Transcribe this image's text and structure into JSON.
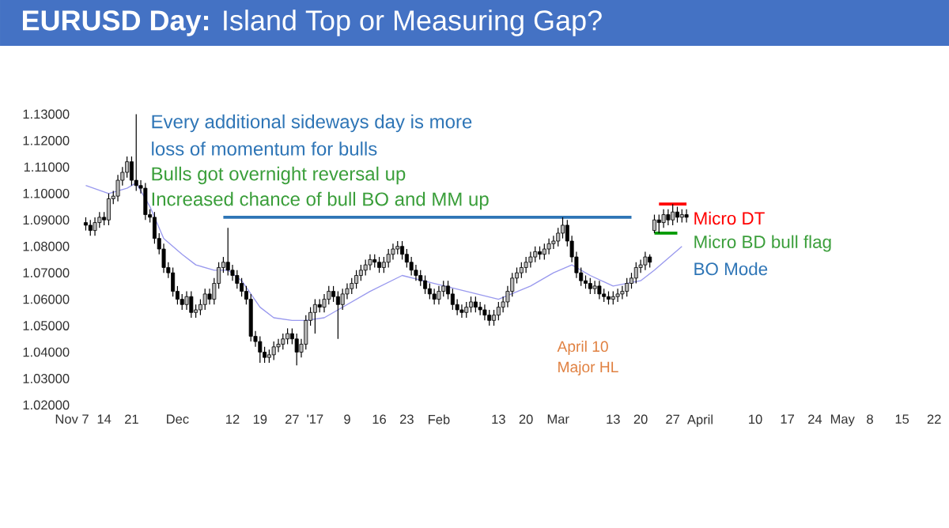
{
  "chart_data": {
    "type": "candlestick",
    "title": "**EURUSD Day:** Island Top or Measuring Gap?",
    "categories": [
      null,
      "Nov 7",
      null,
      null,
      null,
      null,
      null,
      null,
      "14",
      null,
      null,
      null,
      null,
      null,
      "21",
      null,
      null,
      null,
      null,
      null,
      null,
      null,
      null,
      null,
      "Dec",
      null,
      null,
      null,
      null,
      null,
      null,
      null,
      null,
      null,
      null,
      null,
      "12",
      null,
      null,
      null,
      null,
      null,
      "19",
      null,
      null,
      null,
      null,
      null,
      null,
      "27",
      null,
      null,
      null,
      null,
      "'17",
      null,
      null,
      null,
      null,
      null,
      null,
      "9",
      null,
      null,
      null,
      null,
      null,
      null,
      "16",
      null,
      null,
      null,
      null,
      null,
      "23",
      null,
      null,
      null,
      null,
      null,
      null,
      "Feb",
      null,
      null,
      null,
      null,
      null,
      null,
      null,
      null,
      null,
      null,
      null,
      null,
      "13",
      null,
      null,
      null,
      null,
      null,
      "20",
      null,
      null,
      null,
      null,
      null,
      null,
      "Mar",
      null,
      null,
      null,
      null,
      null,
      null,
      null,
      null,
      null,
      null,
      null,
      "13",
      null,
      null,
      null,
      null,
      null,
      "20",
      null,
      null,
      null,
      null,
      null,
      null,
      "27",
      null,
      null,
      null,
      null,
      null,
      "April",
      null,
      null,
      null,
      null,
      null,
      null,
      null,
      null,
      null,
      null,
      null,
      "10",
      null,
      null,
      null,
      null,
      null,
      null,
      "17",
      null,
      null,
      null,
      null,
      null,
      "24",
      null,
      null,
      null,
      null,
      null,
      "May",
      null,
      null,
      null,
      null,
      null,
      "8",
      null,
      null,
      null,
      null,
      null,
      null,
      "15",
      null,
      null,
      null,
      null,
      null,
      null,
      "22",
      null
    ],
    "ohlc": [
      null,
      null,
      null,
      null,
      [
        1.089,
        1.091,
        1.086,
        1.088
      ],
      [
        1.088,
        1.09,
        1.084,
        1.086
      ],
      [
        1.086,
        1.091,
        1.084,
        1.089
      ],
      [
        1.089,
        1.093,
        1.087,
        1.091
      ],
      [
        1.091,
        1.093,
        1.088,
        1.09
      ],
      [
        1.09,
        1.1,
        1.088,
        1.098
      ],
      [
        1.098,
        1.101,
        1.096,
        1.099
      ],
      [
        1.099,
        1.107,
        1.097,
        1.105
      ],
      [
        1.105,
        1.11,
        1.103,
        1.108
      ],
      [
        1.108,
        1.114,
        1.106,
        1.112
      ],
      [
        1.112,
        1.114,
        1.103,
        1.105
      ],
      [
        1.105,
        1.13,
        1.101,
        1.103
      ],
      [
        1.103,
        1.105,
        1.1,
        1.102
      ],
      [
        1.102,
        1.104,
        1.09,
        1.092
      ],
      [
        1.092,
        1.094,
        1.089,
        1.091
      ],
      [
        1.091,
        1.093,
        1.081,
        1.083
      ],
      [
        1.083,
        1.085,
        1.077,
        1.079
      ],
      [
        1.079,
        1.081,
        1.07,
        1.072
      ],
      [
        1.072,
        1.074,
        1.068,
        1.07
      ],
      [
        1.07,
        1.072,
        1.061,
        1.063
      ],
      [
        1.063,
        1.065,
        1.058,
        1.06
      ],
      [
        1.06,
        1.062,
        1.056,
        1.058
      ],
      [
        1.058,
        1.063,
        1.056,
        1.061
      ],
      [
        1.061,
        1.063,
        1.053,
        1.055
      ],
      [
        1.055,
        1.058,
        1.053,
        1.056
      ],
      [
        1.056,
        1.06,
        1.054,
        1.058
      ],
      [
        1.058,
        1.064,
        1.056,
        1.062
      ],
      [
        1.062,
        1.064,
        1.058,
        1.06
      ],
      [
        1.06,
        1.068,
        1.058,
        1.066
      ],
      [
        1.066,
        1.074,
        1.064,
        1.072
      ],
      [
        1.072,
        1.076,
        1.07,
        1.074
      ],
      [
        1.074,
        1.087,
        1.069,
        1.071
      ],
      [
        1.071,
        1.073,
        1.067,
        1.069
      ],
      [
        1.069,
        1.071,
        1.064,
        1.066
      ],
      [
        1.066,
        1.068,
        1.061,
        1.063
      ],
      [
        1.063,
        1.065,
        1.058,
        1.06
      ],
      [
        1.06,
        1.062,
        1.044,
        1.046
      ],
      [
        1.046,
        1.048,
        1.042,
        1.044
      ],
      [
        1.044,
        1.046,
        1.036,
        1.04
      ],
      [
        1.04,
        1.042,
        1.036,
        1.038
      ],
      [
        1.038,
        1.041,
        1.036,
        1.039
      ],
      [
        1.039,
        1.044,
        1.037,
        1.042
      ],
      [
        1.042,
        1.045,
        1.04,
        1.043
      ],
      [
        1.043,
        1.047,
        1.041,
        1.045
      ],
      [
        1.045,
        1.049,
        1.043,
        1.047
      ],
      [
        1.047,
        1.049,
        1.043,
        1.045
      ],
      [
        1.045,
        1.047,
        1.035,
        1.04
      ],
      [
        1.04,
        1.045,
        1.038,
        1.043
      ],
      [
        1.043,
        1.054,
        1.041,
        1.052
      ],
      [
        1.052,
        1.057,
        1.05,
        1.055
      ],
      [
        1.055,
        1.06,
        1.047,
        1.058
      ],
      [
        1.058,
        1.06,
        1.055,
        1.057
      ],
      [
        1.057,
        1.062,
        1.055,
        1.06
      ],
      [
        1.06,
        1.065,
        1.058,
        1.063
      ],
      [
        1.063,
        1.065,
        1.059,
        1.061
      ],
      [
        1.061,
        1.063,
        1.045,
        1.058
      ],
      [
        1.058,
        1.064,
        1.056,
        1.062
      ],
      [
        1.062,
        1.066,
        1.06,
        1.064
      ],
      [
        1.064,
        1.068,
        1.062,
        1.066
      ],
      [
        1.066,
        1.071,
        1.064,
        1.069
      ],
      [
        1.069,
        1.073,
        1.067,
        1.071
      ],
      [
        1.071,
        1.075,
        1.069,
        1.073
      ],
      [
        1.073,
        1.077,
        1.071,
        1.075
      ],
      [
        1.075,
        1.077,
        1.072,
        1.074
      ],
      [
        1.074,
        1.076,
        1.07,
        1.072
      ],
      [
        1.072,
        1.076,
        1.07,
        1.074
      ],
      [
        1.074,
        1.079,
        1.072,
        1.077
      ],
      [
        1.077,
        1.081,
        1.075,
        1.079
      ],
      [
        1.079,
        1.082,
        1.077,
        1.08
      ],
      [
        1.08,
        1.082,
        1.075,
        1.077
      ],
      [
        1.077,
        1.079,
        1.072,
        1.074
      ],
      [
        1.074,
        1.076,
        1.069,
        1.071
      ],
      [
        1.071,
        1.073,
        1.067,
        1.069
      ],
      [
        1.069,
        1.071,
        1.065,
        1.067
      ],
      [
        1.067,
        1.069,
        1.062,
        1.064
      ],
      [
        1.064,
        1.066,
        1.06,
        1.062
      ],
      [
        1.062,
        1.064,
        1.058,
        1.06
      ],
      [
        1.06,
        1.065,
        1.058,
        1.063
      ],
      [
        1.063,
        1.067,
        1.061,
        1.065
      ],
      [
        1.065,
        1.067,
        1.06,
        1.062
      ],
      [
        1.062,
        1.064,
        1.056,
        1.058
      ],
      [
        1.058,
        1.06,
        1.054,
        1.056
      ],
      [
        1.056,
        1.058,
        1.053,
        1.055
      ],
      [
        1.055,
        1.059,
        1.053,
        1.057
      ],
      [
        1.057,
        1.061,
        1.055,
        1.059
      ],
      [
        1.059,
        1.061,
        1.055,
        1.057
      ],
      [
        1.057,
        1.059,
        1.054,
        1.056
      ],
      [
        1.056,
        1.058,
        1.052,
        1.054
      ],
      [
        1.054,
        1.056,
        1.05,
        1.052
      ],
      [
        1.052,
        1.056,
        1.05,
        1.054
      ],
      [
        1.054,
        1.059,
        1.052,
        1.057
      ],
      [
        1.057,
        1.061,
        1.055,
        1.059
      ],
      [
        1.059,
        1.065,
        1.057,
        1.063
      ],
      [
        1.063,
        1.07,
        1.061,
        1.068
      ],
      [
        1.068,
        1.072,
        1.066,
        1.07
      ],
      [
        1.07,
        1.074,
        1.068,
        1.072
      ],
      [
        1.072,
        1.076,
        1.07,
        1.074
      ],
      [
        1.074,
        1.078,
        1.072,
        1.076
      ],
      [
        1.076,
        1.08,
        1.074,
        1.078
      ],
      [
        1.078,
        1.08,
        1.075,
        1.077
      ],
      [
        1.077,
        1.081,
        1.075,
        1.079
      ],
      [
        1.079,
        1.083,
        1.077,
        1.081
      ],
      [
        1.081,
        1.084,
        1.079,
        1.082
      ],
      [
        1.082,
        1.087,
        1.08,
        1.085
      ],
      [
        1.085,
        1.091,
        1.083,
        1.088
      ],
      [
        1.088,
        1.09,
        1.08,
        1.082
      ],
      [
        1.082,
        1.084,
        1.074,
        1.076
      ],
      [
        1.076,
        1.078,
        1.068,
        1.07
      ],
      [
        1.07,
        1.072,
        1.065,
        1.067
      ],
      [
        1.067,
        1.069,
        1.064,
        1.066
      ],
      [
        1.066,
        1.068,
        1.062,
        1.064
      ],
      [
        1.064,
        1.067,
        1.062,
        1.065
      ],
      [
        1.065,
        1.067,
        1.06,
        1.062
      ],
      [
        1.062,
        1.064,
        1.059,
        1.061
      ],
      [
        1.061,
        1.063,
        1.058,
        1.06
      ],
      [
        1.06,
        1.063,
        1.058,
        1.061
      ],
      [
        1.061,
        1.064,
        1.059,
        1.062
      ],
      [
        1.062,
        1.065,
        1.06,
        1.063
      ],
      [
        1.063,
        1.068,
        1.061,
        1.066
      ],
      [
        1.066,
        1.07,
        1.064,
        1.068
      ],
      [
        1.068,
        1.074,
        1.066,
        1.072
      ],
      [
        1.072,
        1.075,
        1.07,
        1.073
      ],
      [
        1.073,
        1.078,
        1.071,
        1.076
      ],
      [
        1.076,
        1.077,
        1.072,
        1.074
      ],
      [
        1.086,
        1.092,
        1.085,
        1.09
      ],
      [
        1.09,
        1.092,
        1.085,
        1.089
      ],
      [
        1.089,
        1.094,
        1.087,
        1.092
      ],
      [
        1.092,
        1.094,
        1.088,
        1.09
      ],
      [
        1.09,
        1.096,
        1.088,
        1.093
      ],
      [
        1.093,
        1.095,
        1.089,
        1.091
      ],
      [
        1.091,
        1.094,
        1.089,
        1.092
      ],
      [
        1.092,
        1.094,
        1.089,
        1.091
      ],
      null,
      null,
      null,
      null,
      null,
      null,
      null,
      null,
      null,
      null,
      null,
      null,
      null,
      null,
      null,
      null,
      null,
      null,
      null,
      null,
      null,
      null,
      null,
      null,
      null,
      null,
      null,
      null,
      null,
      null,
      null,
      null,
      null,
      null,
      null,
      null,
      null,
      null,
      null,
      null,
      null,
      null,
      null,
      null,
      null,
      null,
      null,
      null,
      null,
      null,
      null,
      null,
      null,
      null,
      null
    ],
    "series": [
      {
        "type": "line",
        "color": "#9999ee",
        "values": [
          null,
          null,
          null,
          null,
          1.103,
          null,
          null,
          null,
          null,
          1.1,
          null,
          null,
          null,
          1.102,
          null,
          1.104,
          null,
          null,
          1.095,
          null,
          null,
          1.083,
          null,
          null,
          null,
          1.077,
          null,
          null,
          1.073,
          null,
          null,
          null,
          1.071,
          null,
          null,
          1.071,
          null,
          null,
          1.067,
          null,
          null,
          null,
          1.057,
          null,
          null,
          1.053,
          null,
          null,
          null,
          1.052,
          null,
          null,
          1.052,
          null,
          null,
          null,
          1.053,
          null,
          null,
          1.056,
          null,
          null,
          null,
          null,
          null,
          null,
          1.063,
          null,
          null,
          null,
          null,
          null,
          null,
          1.069,
          null,
          null,
          null,
          null,
          null,
          null,
          1.066,
          null,
          null,
          null,
          null,
          null,
          null,
          1.063,
          null,
          null,
          null,
          null,
          null,
          null,
          1.06,
          null,
          null,
          null,
          null,
          null,
          null,
          1.065,
          null,
          null,
          null,
          null,
          1.07,
          null,
          null,
          null,
          1.073,
          null,
          null,
          null,
          1.069,
          null,
          null,
          null,
          null,
          1.065,
          null,
          null,
          null,
          null,
          null,
          1.067,
          null,
          null,
          1.071,
          null,
          null,
          null,
          null,
          null,
          1.08,
          null,
          null,
          null,
          null,
          null,
          null,
          null,
          null,
          null,
          null,
          null,
          null,
          null,
          null,
          null,
          null,
          null,
          null,
          null,
          null,
          null,
          null,
          null,
          null,
          null,
          null,
          null,
          null,
          null,
          null,
          null,
          null,
          null,
          null,
          null,
          null,
          null,
          null,
          null,
          null,
          null,
          null,
          null,
          null,
          null,
          null,
          null,
          null,
          null,
          null,
          null,
          null,
          null,
          null,
          null,
          null
        ]
      },
      {
        "type": "line",
        "color": "#2e75b6",
        "values": [
          null,
          null,
          null,
          null,
          null,
          null,
          null,
          null,
          null,
          null,
          null,
          null,
          null,
          null,
          null,
          null,
          null,
          null,
          null,
          null,
          null,
          null,
          null,
          null,
          null,
          null,
          null,
          null,
          null,
          null,
          null,
          null,
          null,
          null,
          1.091,
          null,
          null,
          null,
          null,
          null,
          null,
          null,
          null,
          null,
          null,
          null,
          null,
          null,
          null,
          null,
          null,
          null,
          null,
          null,
          null,
          null,
          null,
          null,
          null,
          null,
          null,
          null,
          null,
          null,
          null,
          null,
          null,
          null,
          null,
          null,
          null,
          null,
          null,
          null,
          null,
          null,
          null,
          null,
          null,
          null,
          null,
          null,
          null,
          null,
          null,
          null,
          null,
          null,
          null,
          null,
          null,
          null,
          null,
          null,
          null,
          null,
          null,
          null,
          null,
          null,
          null,
          null,
          null,
          null,
          null,
          null,
          null,
          null,
          null,
          null,
          null,
          null,
          null,
          null,
          null,
          null,
          null,
          null,
          null,
          null,
          null,
          null,
          null,
          1.091,
          null,
          null,
          null,
          null,
          null,
          null,
          null,
          null,
          null,
          null,
          null,
          null,
          null,
          null,
          null,
          null,
          null,
          null,
          null,
          null,
          null,
          null,
          null,
          null,
          null,
          null,
          null,
          null,
          null,
          null,
          null,
          null,
          null,
          null,
          null,
          null,
          null,
          null,
          null,
          null,
          null,
          null,
          null,
          null,
          null,
          null,
          null,
          null,
          null,
          null,
          null,
          null,
          null,
          null,
          null,
          null,
          null,
          null,
          null,
          null,
          null,
          null,
          null,
          null,
          null,
          null,
          null
        ]
      },
      {
        "type": "line",
        "color": "#ff0000",
        "values": [
          null,
          null,
          null,
          null,
          null,
          null,
          null,
          null,
          null,
          null,
          null,
          null,
          null,
          null,
          null,
          null,
          null,
          null,
          null,
          null,
          null,
          null,
          null,
          null,
          null,
          null,
          null,
          null,
          null,
          null,
          null,
          null,
          null,
          null,
          null,
          null,
          null,
          null,
          null,
          null,
          null,
          null,
          null,
          null,
          null,
          null,
          null,
          null,
          null,
          null,
          null,
          null,
          null,
          null,
          null,
          null,
          null,
          null,
          null,
          null,
          null,
          null,
          null,
          null,
          null,
          null,
          null,
          null,
          null,
          null,
          null,
          null,
          null,
          null,
          null,
          null,
          null,
          null,
          null,
          null,
          null,
          null,
          null,
          null,
          null,
          null,
          null,
          null,
          null,
          null,
          null,
          null,
          null,
          null,
          null,
          null,
          null,
          null,
          null,
          null,
          null,
          null,
          null,
          null,
          null,
          null,
          null,
          null,
          null,
          null,
          null,
          null,
          null,
          null,
          null,
          null,
          null,
          null,
          null,
          null,
          null,
          null,
          null,
          null,
          null,
          null,
          null,
          null,
          null,
          1.096,
          null,
          null,
          null,
          null,
          null,
          1.096,
          null,
          null,
          null,
          null,
          null,
          null,
          null,
          null,
          null,
          null,
          null,
          null,
          null,
          null,
          null,
          null,
          null,
          null,
          null,
          null,
          null,
          null,
          null,
          null,
          null,
          null,
          null,
          null,
          null,
          null,
          null,
          null,
          null,
          null,
          null,
          null,
          null,
          null,
          null,
          null,
          null,
          null,
          null,
          null,
          null,
          null,
          null,
          null,
          null,
          null,
          null,
          null,
          null,
          null,
          null
        ]
      },
      {
        "type": "line",
        "color": "#009a00",
        "values": [
          null,
          null,
          null,
          null,
          null,
          null,
          null,
          null,
          null,
          null,
          null,
          null,
          null,
          null,
          null,
          null,
          null,
          null,
          null,
          null,
          null,
          null,
          null,
          null,
          null,
          null,
          null,
          null,
          null,
          null,
          null,
          null,
          null,
          null,
          null,
          null,
          null,
          null,
          null,
          null,
          null,
          null,
          null,
          null,
          null,
          null,
          null,
          null,
          null,
          null,
          null,
          null,
          null,
          null,
          null,
          null,
          null,
          null,
          null,
          null,
          null,
          null,
          null,
          null,
          null,
          null,
          null,
          null,
          null,
          null,
          null,
          null,
          null,
          null,
          null,
          null,
          null,
          null,
          null,
          null,
          null,
          null,
          null,
          null,
          null,
          null,
          null,
          null,
          null,
          null,
          null,
          null,
          null,
          null,
          null,
          null,
          null,
          null,
          null,
          null,
          null,
          null,
          null,
          null,
          null,
          null,
          null,
          null,
          null,
          null,
          null,
          null,
          null,
          null,
          null,
          null,
          null,
          null,
          null,
          null,
          null,
          null,
          null,
          null,
          null,
          null,
          null,
          null,
          1.085,
          null,
          null,
          null,
          null,
          1.085,
          null,
          null,
          null,
          null,
          null,
          null,
          null,
          null,
          null,
          null,
          null,
          null,
          null,
          null,
          null,
          null,
          null,
          null,
          null,
          null,
          null,
          null,
          null,
          null,
          null,
          null,
          null,
          null,
          null,
          null,
          null,
          null,
          null,
          null,
          null,
          null,
          null,
          null,
          null,
          null,
          null,
          null,
          null,
          null,
          null,
          null,
          null,
          null,
          null,
          null,
          null,
          null,
          null,
          null,
          null,
          null,
          null
        ]
      }
    ],
    "ylim": [
      1.02,
      1.13
    ],
    "yticks": [
      {
        "value": 1.02,
        "label": "1.02000"
      },
      {
        "value": 1.03,
        "label": "1.03000"
      },
      {
        "value": 1.04,
        "label": "1.04000"
      },
      {
        "value": 1.05,
        "label": "1.05000"
      },
      {
        "value": 1.06,
        "label": "1.06000"
      },
      {
        "value": 1.07,
        "label": "1.07000"
      },
      {
        "value": 1.08,
        "label": "1.08000"
      },
      {
        "value": 1.09,
        "label": "1.09000"
      },
      {
        "value": 1.1,
        "label": "1.10000"
      },
      {
        "value": 1.11,
        "label": "1.11000"
      },
      {
        "value": 1.12,
        "label": "1.12000"
      },
      {
        "value": 1.13,
        "label": "1.13000"
      }
    ],
    "annotations": [
      "Every additional sideways day is more",
      "loss of momentum for bulls",
      "Bulls got overnight reversal up",
      "Increased chance of bull BO and MM up",
      "Micro DT",
      "Micro BD bull flag",
      "BO Mode",
      "April 10",
      "Major HL"
    ]
  }
}
